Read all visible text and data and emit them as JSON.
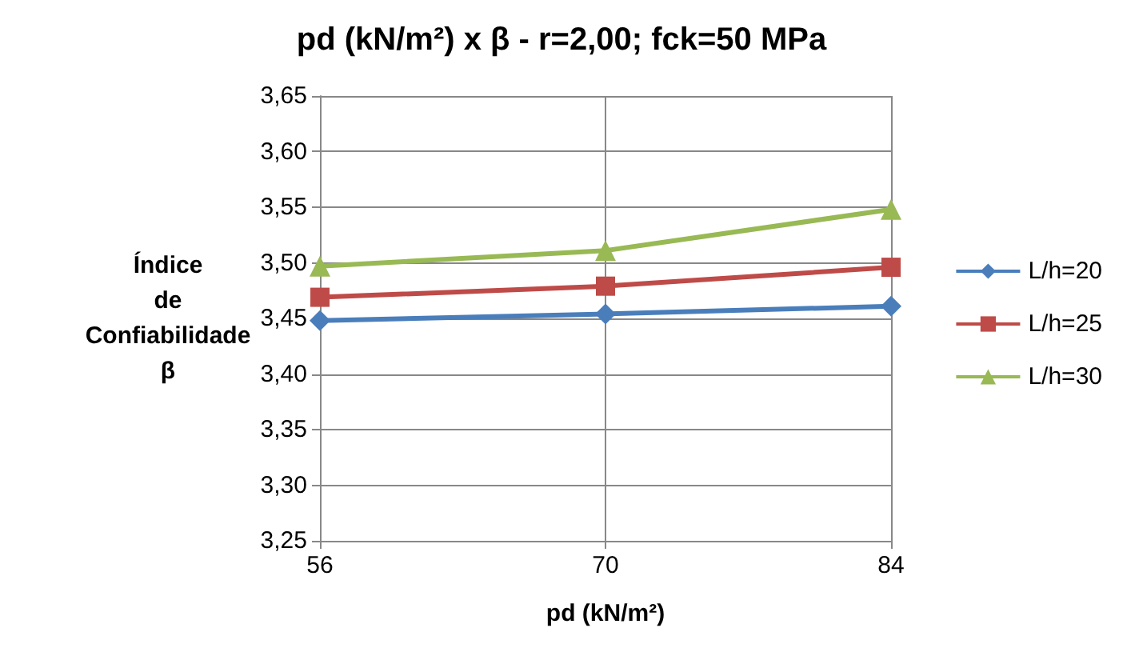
{
  "chart_data": {
    "type": "line",
    "title": "pd (kN/m²) x β - r=2,00; fck=50 MPa",
    "xlabel": "pd (kN/m²)",
    "ylabel": "Índice\nde\nConfiabilidade\nβ",
    "categories": [
      "56",
      "70",
      "84"
    ],
    "series": [
      {
        "name": "L/h=20",
        "color": "#4a7ebb",
        "marker": "diamond",
        "values": [
          3.448,
          3.454,
          3.461
        ]
      },
      {
        "name": "L/h=25",
        "color": "#be4b48",
        "marker": "square",
        "values": [
          3.469,
          3.479,
          3.496
        ]
      },
      {
        "name": "L/h=30",
        "color": "#98b954",
        "marker": "triangle",
        "values": [
          3.497,
          3.511,
          3.548
        ]
      }
    ],
    "ylim": [
      3.25,
      3.65
    ],
    "yticks": [
      {
        "value": 3.25,
        "label": "3,25"
      },
      {
        "value": 3.3,
        "label": "3,30"
      },
      {
        "value": 3.35,
        "label": "3,35"
      },
      {
        "value": 3.4,
        "label": "3,40"
      },
      {
        "value": 3.45,
        "label": "3,45"
      },
      {
        "value": 3.5,
        "label": "3,50"
      },
      {
        "value": 3.55,
        "label": "3,55"
      },
      {
        "value": 3.6,
        "label": "3,60"
      },
      {
        "value": 3.65,
        "label": "3,65"
      }
    ],
    "grid": true,
    "legend": "right",
    "line_style": "solid"
  }
}
